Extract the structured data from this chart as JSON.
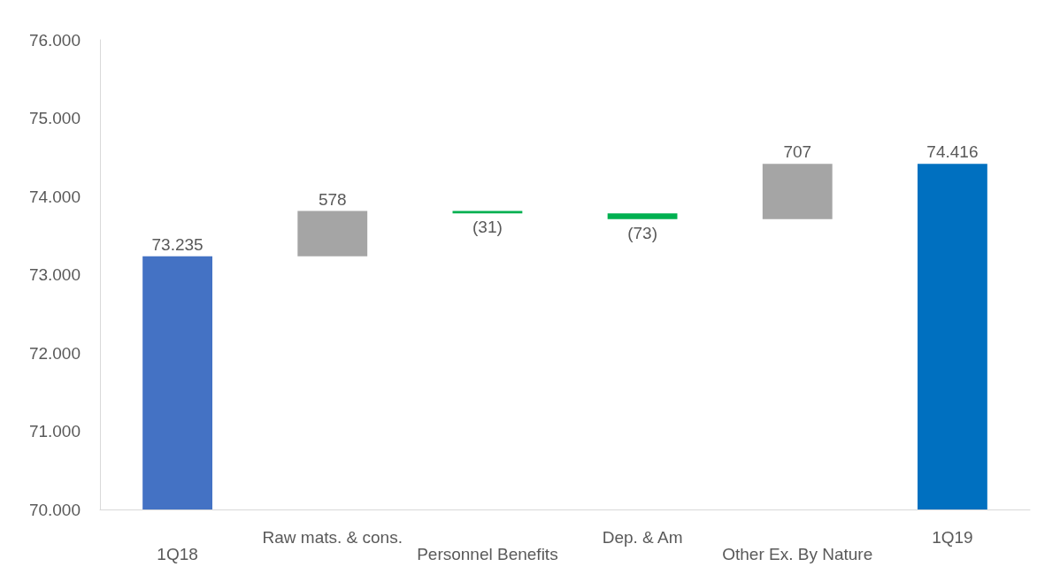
{
  "chart_data": {
    "type": "bar",
    "categories": [
      "1Q18",
      "Raw mats. & cons.",
      "Personnel Benefits",
      "Dep. & Am",
      "Other Ex. By Nature",
      "1Q19"
    ],
    "values": [
      73235,
      578,
      -31,
      -73,
      707,
      74416
    ],
    "base": [
      null,
      73235,
      73813,
      73782,
      73709,
      null
    ],
    "colors": [
      "#4472c4",
      "#a5a5a5",
      "#00b050",
      "#00b050",
      "#a5a5a5",
      "#0070c0"
    ],
    "value_labels": [
      "73.235",
      "578",
      "(31)",
      "(73)",
      "707",
      "74.416"
    ],
    "ylim": [
      70000,
      76000
    ],
    "yticks": [
      {
        "value": 70000,
        "label": "70.000"
      },
      {
        "value": 71000,
        "label": "71.000"
      },
      {
        "value": 72000,
        "label": "72.000"
      },
      {
        "value": 73000,
        "label": "73.000"
      },
      {
        "value": 74000,
        "label": "74.000"
      },
      {
        "value": 75000,
        "label": "75.000"
      },
      {
        "value": 76000,
        "label": "76.000"
      }
    ],
    "grid": false
  }
}
